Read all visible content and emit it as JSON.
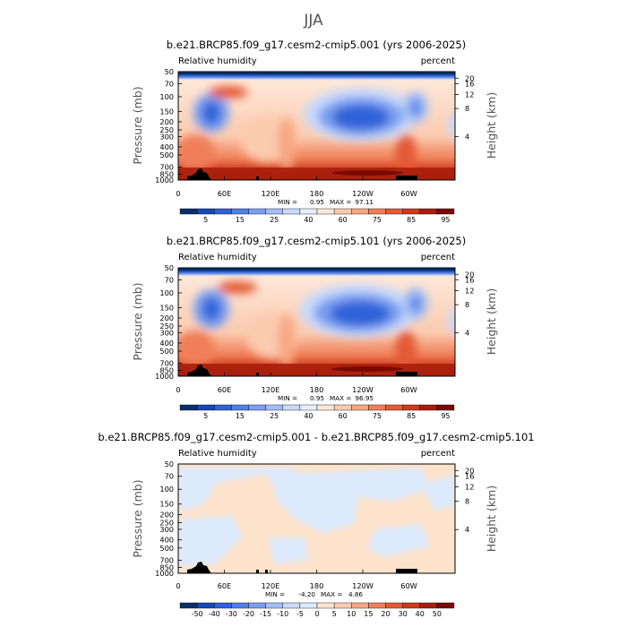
{
  "page": {
    "title": "JJA"
  },
  "chart_data": [
    {
      "type": "heatmap",
      "title": "b.e21.BRCP85.f09_g17.cesm2-cmip5.001 (yrs 2006-2025)",
      "variable_label": "Relative humidity",
      "units_label": "percent",
      "ylabel": "Pressure (mb)",
      "ylabel_right": "Height (km)",
      "x_ticks": [
        "0",
        "60E",
        "120E",
        "180",
        "120W",
        "60W"
      ],
      "y_ticks": [
        "50",
        "70",
        "100",
        "150",
        "200",
        "250",
        "300",
        "400",
        "500",
        "700",
        "850",
        "1000"
      ],
      "height_ticks": [
        "20",
        "16",
        "12",
        "8",
        "4"
      ],
      "stats": {
        "min_label": "MIN =",
        "min": "0.95",
        "max_label": "MAX =",
        "max": "97.11"
      },
      "colorbar": {
        "levels": [
          "5",
          "15",
          "25",
          "40",
          "60",
          "75",
          "85",
          "95"
        ],
        "colors": [
          "#08306b",
          "#1747b8",
          "#2f62d8",
          "#4f7fe6",
          "#7a9ff0",
          "#a3bef6",
          "#c9d9fb",
          "#e6eefe",
          "#fde7d8",
          "#fbcbb0",
          "#f7a783",
          "#f07f58",
          "#e35a35",
          "#cc3a1c",
          "#a81f0c",
          "#7a0a00"
        ]
      }
    },
    {
      "type": "heatmap",
      "title": "b.e21.BRCP85.f09_g17.cesm2-cmip5.101 (yrs 2006-2025)",
      "variable_label": "Relative humidity",
      "units_label": "percent",
      "ylabel": "Pressure (mb)",
      "ylabel_right": "Height (km)",
      "x_ticks": [
        "0",
        "60E",
        "120E",
        "180",
        "120W",
        "60W"
      ],
      "y_ticks": [
        "50",
        "70",
        "100",
        "150",
        "200",
        "250",
        "300",
        "400",
        "500",
        "700",
        "850",
        "1000"
      ],
      "height_ticks": [
        "20",
        "16",
        "12",
        "8",
        "4"
      ],
      "stats": {
        "min_label": "MIN =",
        "min": "0.95",
        "max_label": "MAX =",
        "max": "96.95"
      },
      "colorbar": {
        "levels": [
          "5",
          "15",
          "25",
          "40",
          "60",
          "75",
          "85",
          "95"
        ],
        "colors": [
          "#08306b",
          "#1747b8",
          "#2f62d8",
          "#4f7fe6",
          "#7a9ff0",
          "#a3bef6",
          "#c9d9fb",
          "#e6eefe",
          "#fde7d8",
          "#fbcbb0",
          "#f7a783",
          "#f07f58",
          "#e35a35",
          "#cc3a1c",
          "#a81f0c",
          "#7a0a00"
        ]
      }
    },
    {
      "type": "heatmap",
      "title": "b.e21.BRCP85.f09_g17.cesm2-cmip5.001 - b.e21.BRCP85.f09_g17.cesm2-cmip5.101",
      "variable_label": "Relative humidity",
      "units_label": "percent",
      "ylabel": "Pressure (mb)",
      "ylabel_right": "Height (km)",
      "x_ticks": [
        "0",
        "60E",
        "120E",
        "180",
        "120W",
        "60W"
      ],
      "y_ticks": [
        "50",
        "70",
        "100",
        "150",
        "200",
        "250",
        "300",
        "400",
        "500",
        "700",
        "850",
        "1000"
      ],
      "height_ticks": [
        "20",
        "16",
        "12",
        "8",
        "4"
      ],
      "stats": {
        "min_label": "MIN =",
        "min": "-4.20",
        "max_label": "MAX =",
        "max": "4.86"
      },
      "colorbar": {
        "levels": [
          "-50",
          "-40",
          "-30",
          "-20",
          "-15",
          "-10",
          "-5",
          "0",
          "5",
          "10",
          "15",
          "20",
          "30",
          "40",
          "50"
        ],
        "colors": [
          "#08306b",
          "#1747b8",
          "#2f62d8",
          "#4f7fe6",
          "#7a9ff0",
          "#a3bef6",
          "#c9d9fb",
          "#ddeafc",
          "#fde3cc",
          "#fbcbb0",
          "#f7a783",
          "#f07f58",
          "#e35a35",
          "#cc3a1c",
          "#a81f0c",
          "#7a0a00"
        ]
      }
    }
  ]
}
